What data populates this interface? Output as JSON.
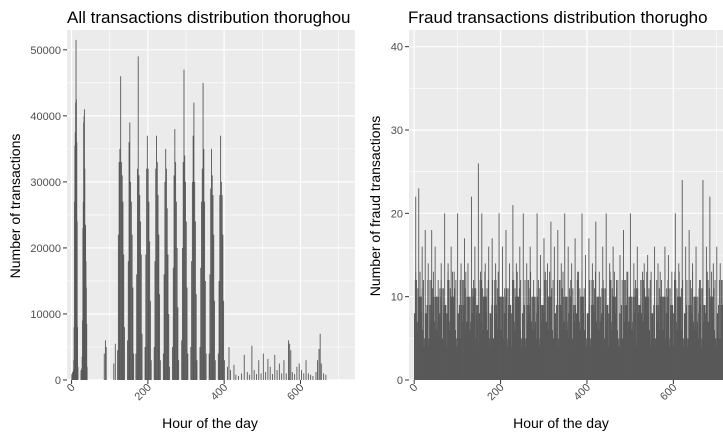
{
  "chart_data": [
    {
      "type": "bar",
      "title": "All transactions distribution thorughou",
      "xlabel": "Hour of the day",
      "ylabel": "Number of transactions",
      "xlim": [
        -12,
        743
      ],
      "ylim": [
        0,
        53000
      ],
      "xticks": [
        0,
        200,
        400,
        600
      ],
      "yticks": [
        0,
        10000,
        20000,
        30000,
        40000,
        50000
      ],
      "ytick_labels": [
        "0",
        "10000",
        "20000",
        "30000",
        "40000",
        "50000"
      ],
      "grid": true,
      "bar_color": "#595959",
      "bars": [
        {
          "x": 0,
          "y": 900
        },
        {
          "x": 1,
          "y": 700
        },
        {
          "x": 2,
          "y": 1200
        },
        {
          "x": 3,
          "y": 600
        },
        {
          "x": 4,
          "y": 1500
        },
        {
          "x": 5,
          "y": 3000
        },
        {
          "x": 6,
          "y": 8000
        },
        {
          "x": 7,
          "y": 27000
        },
        {
          "x": 8,
          "y": 35500
        },
        {
          "x": 9,
          "y": 37500
        },
        {
          "x": 10,
          "y": 42000
        },
        {
          "x": 11,
          "y": 51500
        },
        {
          "x": 12,
          "y": 42500
        },
        {
          "x": 13,
          "y": 36000
        },
        {
          "x": 14,
          "y": 24000
        },
        {
          "x": 15,
          "y": 8000
        },
        {
          "x": 16,
          "y": 2000
        },
        {
          "x": 24,
          "y": 1500
        },
        {
          "x": 25,
          "y": 1000
        },
        {
          "x": 26,
          "y": 1800
        },
        {
          "x": 27,
          "y": 3500
        },
        {
          "x": 28,
          "y": 9000
        },
        {
          "x": 29,
          "y": 23000
        },
        {
          "x": 30,
          "y": 27000
        },
        {
          "x": 31,
          "y": 39000
        },
        {
          "x": 32,
          "y": 40000
        },
        {
          "x": 33,
          "y": 41000
        },
        {
          "x": 34,
          "y": 32000
        },
        {
          "x": 35,
          "y": 23000
        },
        {
          "x": 36,
          "y": 23500
        },
        {
          "x": 37,
          "y": 18000
        },
        {
          "x": 38,
          "y": 14000
        },
        {
          "x": 39,
          "y": 8500
        },
        {
          "x": 40,
          "y": 2000
        },
        {
          "x": 85,
          "y": 4000
        },
        {
          "x": 88,
          "y": 6000
        },
        {
          "x": 90,
          "y": 5000
        },
        {
          "x": 110,
          "y": 2500
        },
        {
          "x": 114,
          "y": 5500
        },
        {
          "x": 120,
          "y": 4500
        },
        {
          "x": 122,
          "y": 22000
        },
        {
          "x": 124,
          "y": 33000
        },
        {
          "x": 126,
          "y": 35000
        },
        {
          "x": 128,
          "y": 46000
        },
        {
          "x": 130,
          "y": 33000
        },
        {
          "x": 132,
          "y": 31000
        },
        {
          "x": 134,
          "y": 27000
        },
        {
          "x": 136,
          "y": 19000
        },
        {
          "x": 138,
          "y": 8000
        },
        {
          "x": 146,
          "y": 6000
        },
        {
          "x": 148,
          "y": 18000
        },
        {
          "x": 150,
          "y": 36000
        },
        {
          "x": 152,
          "y": 39000
        },
        {
          "x": 154,
          "y": 30000
        },
        {
          "x": 156,
          "y": 27000
        },
        {
          "x": 158,
          "y": 22000
        },
        {
          "x": 160,
          "y": 14000
        },
        {
          "x": 162,
          "y": 4000
        },
        {
          "x": 168,
          "y": 4000
        },
        {
          "x": 170,
          "y": 16000
        },
        {
          "x": 172,
          "y": 32000
        },
        {
          "x": 174,
          "y": 49000
        },
        {
          "x": 176,
          "y": 31000
        },
        {
          "x": 178,
          "y": 28000
        },
        {
          "x": 180,
          "y": 24000
        },
        {
          "x": 182,
          "y": 19000
        },
        {
          "x": 184,
          "y": 7000
        },
        {
          "x": 192,
          "y": 5000
        },
        {
          "x": 194,
          "y": 19000
        },
        {
          "x": 196,
          "y": 32000
        },
        {
          "x": 198,
          "y": 37000
        },
        {
          "x": 200,
          "y": 32000
        },
        {
          "x": 202,
          "y": 27000
        },
        {
          "x": 204,
          "y": 21000
        },
        {
          "x": 206,
          "y": 12000
        },
        {
          "x": 208,
          "y": 3000
        },
        {
          "x": 216,
          "y": 5000
        },
        {
          "x": 218,
          "y": 18000
        },
        {
          "x": 220,
          "y": 32000
        },
        {
          "x": 222,
          "y": 37000
        },
        {
          "x": 224,
          "y": 33000
        },
        {
          "x": 226,
          "y": 28000
        },
        {
          "x": 228,
          "y": 22000
        },
        {
          "x": 230,
          "y": 13000
        },
        {
          "x": 232,
          "y": 3000
        },
        {
          "x": 240,
          "y": 4000
        },
        {
          "x": 242,
          "y": 16000
        },
        {
          "x": 244,
          "y": 30000
        },
        {
          "x": 246,
          "y": 35000
        },
        {
          "x": 248,
          "y": 32000
        },
        {
          "x": 250,
          "y": 26000
        },
        {
          "x": 252,
          "y": 19000
        },
        {
          "x": 254,
          "y": 10000
        },
        {
          "x": 256,
          "y": 2000
        },
        {
          "x": 264,
          "y": 5000
        },
        {
          "x": 266,
          "y": 17000
        },
        {
          "x": 268,
          "y": 31000
        },
        {
          "x": 270,
          "y": 38000
        },
        {
          "x": 272,
          "y": 33000
        },
        {
          "x": 274,
          "y": 27000
        },
        {
          "x": 276,
          "y": 20000
        },
        {
          "x": 278,
          "y": 11000
        },
        {
          "x": 280,
          "y": 3000
        },
        {
          "x": 288,
          "y": 6000
        },
        {
          "x": 290,
          "y": 20000
        },
        {
          "x": 292,
          "y": 33000
        },
        {
          "x": 294,
          "y": 47000
        },
        {
          "x": 296,
          "y": 34000
        },
        {
          "x": 298,
          "y": 30000
        },
        {
          "x": 300,
          "y": 24000
        },
        {
          "x": 302,
          "y": 14000
        },
        {
          "x": 304,
          "y": 4000
        },
        {
          "x": 312,
          "y": 5000
        },
        {
          "x": 314,
          "y": 18000
        },
        {
          "x": 316,
          "y": 30000
        },
        {
          "x": 318,
          "y": 37000
        },
        {
          "x": 320,
          "y": 42000
        },
        {
          "x": 322,
          "y": 30000
        },
        {
          "x": 324,
          "y": 24000
        },
        {
          "x": 326,
          "y": 13000
        },
        {
          "x": 328,
          "y": 3000
        },
        {
          "x": 336,
          "y": 5000
        },
        {
          "x": 338,
          "y": 17000
        },
        {
          "x": 340,
          "y": 27000
        },
        {
          "x": 342,
          "y": 32000
        },
        {
          "x": 344,
          "y": 45000
        },
        {
          "x": 346,
          "y": 35000
        },
        {
          "x": 348,
          "y": 27000
        },
        {
          "x": 350,
          "y": 15000
        },
        {
          "x": 352,
          "y": 4000
        },
        {
          "x": 360,
          "y": 4000
        },
        {
          "x": 362,
          "y": 16000
        },
        {
          "x": 364,
          "y": 29000
        },
        {
          "x": 366,
          "y": 35000
        },
        {
          "x": 368,
          "y": 31000
        },
        {
          "x": 370,
          "y": 28000
        },
        {
          "x": 372,
          "y": 22000
        },
        {
          "x": 374,
          "y": 12000
        },
        {
          "x": 376,
          "y": 3000
        },
        {
          "x": 384,
          "y": 4000
        },
        {
          "x": 386,
          "y": 15000
        },
        {
          "x": 388,
          "y": 28000
        },
        {
          "x": 390,
          "y": 37000
        },
        {
          "x": 392,
          "y": 30000
        },
        {
          "x": 394,
          "y": 28000
        },
        {
          "x": 396,
          "y": 22000
        },
        {
          "x": 398,
          "y": 12000
        },
        {
          "x": 400,
          "y": 3000
        },
        {
          "x": 408,
          "y": 2000
        },
        {
          "x": 412,
          "y": 5000
        },
        {
          "x": 416,
          "y": 1500
        },
        {
          "x": 425,
          "y": 2300
        },
        {
          "x": 430,
          "y": 800
        },
        {
          "x": 437,
          "y": 600
        },
        {
          "x": 445,
          "y": 1000
        },
        {
          "x": 452,
          "y": 3800
        },
        {
          "x": 460,
          "y": 1200
        },
        {
          "x": 466,
          "y": 800
        },
        {
          "x": 472,
          "y": 5200
        },
        {
          "x": 478,
          "y": 1500
        },
        {
          "x": 484,
          "y": 900
        },
        {
          "x": 490,
          "y": 3000
        },
        {
          "x": 496,
          "y": 1000
        },
        {
          "x": 502,
          "y": 4000
        },
        {
          "x": 508,
          "y": 1200
        },
        {
          "x": 514,
          "y": 3200
        },
        {
          "x": 520,
          "y": 2000
        },
        {
          "x": 526,
          "y": 900
        },
        {
          "x": 532,
          "y": 3800
        },
        {
          "x": 538,
          "y": 1500
        },
        {
          "x": 544,
          "y": 2500
        },
        {
          "x": 550,
          "y": 1000
        },
        {
          "x": 556,
          "y": 3000
        },
        {
          "x": 562,
          "y": 1000
        },
        {
          "x": 568,
          "y": 6000
        },
        {
          "x": 571,
          "y": 5500
        },
        {
          "x": 574,
          "y": 4500
        },
        {
          "x": 578,
          "y": 1200
        },
        {
          "x": 584,
          "y": 900
        },
        {
          "x": 590,
          "y": 2000
        },
        {
          "x": 596,
          "y": 2500
        },
        {
          "x": 602,
          "y": 1500
        },
        {
          "x": 608,
          "y": 1000
        },
        {
          "x": 614,
          "y": 3000
        },
        {
          "x": 620,
          "y": 1000
        },
        {
          "x": 626,
          "y": 800
        },
        {
          "x": 632,
          "y": 600
        },
        {
          "x": 640,
          "y": 1200
        },
        {
          "x": 644,
          "y": 3000
        },
        {
          "x": 648,
          "y": 4700
        },
        {
          "x": 651,
          "y": 7000
        },
        {
          "x": 654,
          "y": 2500
        },
        {
          "x": 660,
          "y": 1000
        },
        {
          "x": 666,
          "y": 800
        }
      ]
    },
    {
      "type": "bar",
      "title": "Fraud transactions distribution thorugho",
      "xlabel": "Hour of the day",
      "ylabel": "Number of fraud transactions",
      "xlim": [
        -12,
        752
      ],
      "ylim": [
        0,
        42
      ],
      "xticks": [
        0,
        200,
        400,
        600
      ],
      "yticks": [
        0,
        10,
        20,
        30,
        40
      ],
      "ytick_labels": [
        "0",
        "10",
        "20",
        "30",
        "40"
      ],
      "grid": true,
      "bar_color": "#595959",
      "base_levels": [
        8,
        6,
        10,
        7,
        12,
        5,
        9,
        8,
        11,
        6,
        10,
        4,
        9,
        7,
        12,
        6,
        10,
        8,
        5,
        11,
        9,
        7,
        13,
        6,
        10,
        8,
        4,
        12,
        9,
        7,
        10,
        6,
        11,
        8,
        5,
        9,
        12,
        7,
        10,
        6,
        8,
        11,
        4,
        9,
        7,
        13,
        6,
        10,
        8,
        5
      ],
      "spikes": [
        {
          "x": 3,
          "y": 22
        },
        {
          "x": 10,
          "y": 23
        },
        {
          "x": 18,
          "y": 16
        },
        {
          "x": 25,
          "y": 18
        },
        {
          "x": 32,
          "y": 14
        },
        {
          "x": 40,
          "y": 18
        },
        {
          "x": 48,
          "y": 16
        },
        {
          "x": 55,
          "y": 12
        },
        {
          "x": 62,
          "y": 14
        },
        {
          "x": 70,
          "y": 20
        },
        {
          "x": 78,
          "y": 14
        },
        {
          "x": 85,
          "y": 16
        },
        {
          "x": 92,
          "y": 13
        },
        {
          "x": 100,
          "y": 20
        },
        {
          "x": 108,
          "y": 14
        },
        {
          "x": 116,
          "y": 17
        },
        {
          "x": 124,
          "y": 14
        },
        {
          "x": 132,
          "y": 22
        },
        {
          "x": 140,
          "y": 16
        },
        {
          "x": 148,
          "y": 26
        },
        {
          "x": 156,
          "y": 20
        },
        {
          "x": 164,
          "y": 14
        },
        {
          "x": 172,
          "y": 16
        },
        {
          "x": 180,
          "y": 17
        },
        {
          "x": 188,
          "y": 14
        },
        {
          "x": 196,
          "y": 20
        },
        {
          "x": 204,
          "y": 16
        },
        {
          "x": 212,
          "y": 18
        },
        {
          "x": 220,
          "y": 14
        },
        {
          "x": 228,
          "y": 21
        },
        {
          "x": 236,
          "y": 14
        },
        {
          "x": 244,
          "y": 16
        },
        {
          "x": 252,
          "y": 20
        },
        {
          "x": 260,
          "y": 14
        },
        {
          "x": 268,
          "y": 16
        },
        {
          "x": 276,
          "y": 12
        },
        {
          "x": 284,
          "y": 20
        },
        {
          "x": 292,
          "y": 15
        },
        {
          "x": 300,
          "y": 17
        },
        {
          "x": 308,
          "y": 14
        },
        {
          "x": 316,
          "y": 19
        },
        {
          "x": 324,
          "y": 16
        },
        {
          "x": 332,
          "y": 18
        },
        {
          "x": 340,
          "y": 14
        },
        {
          "x": 348,
          "y": 20
        },
        {
          "x": 356,
          "y": 16
        },
        {
          "x": 364,
          "y": 14
        },
        {
          "x": 372,
          "y": 17
        },
        {
          "x": 380,
          "y": 13
        },
        {
          "x": 388,
          "y": 20
        },
        {
          "x": 396,
          "y": 15
        },
        {
          "x": 404,
          "y": 17
        },
        {
          "x": 412,
          "y": 14
        },
        {
          "x": 420,
          "y": 19
        },
        {
          "x": 428,
          "y": 13
        },
        {
          "x": 436,
          "y": 16
        },
        {
          "x": 444,
          "y": 20
        },
        {
          "x": 452,
          "y": 14
        },
        {
          "x": 460,
          "y": 16
        },
        {
          "x": 468,
          "y": 12
        },
        {
          "x": 476,
          "y": 15
        },
        {
          "x": 484,
          "y": 18
        },
        {
          "x": 492,
          "y": 13
        },
        {
          "x": 500,
          "y": 20
        },
        {
          "x": 508,
          "y": 14
        },
        {
          "x": 516,
          "y": 16
        },
        {
          "x": 524,
          "y": 12
        },
        {
          "x": 532,
          "y": 14
        },
        {
          "x": 540,
          "y": 15
        },
        {
          "x": 548,
          "y": 13
        },
        {
          "x": 556,
          "y": 16
        },
        {
          "x": 564,
          "y": 14
        },
        {
          "x": 572,
          "y": 12
        },
        {
          "x": 580,
          "y": 16
        },
        {
          "x": 588,
          "y": 15
        },
        {
          "x": 596,
          "y": 13
        },
        {
          "x": 604,
          "y": 20
        },
        {
          "x": 612,
          "y": 14
        },
        {
          "x": 620,
          "y": 24
        },
        {
          "x": 628,
          "y": 16
        },
        {
          "x": 636,
          "y": 18
        },
        {
          "x": 644,
          "y": 14
        },
        {
          "x": 652,
          "y": 16
        },
        {
          "x": 660,
          "y": 12
        },
        {
          "x": 668,
          "y": 24
        },
        {
          "x": 676,
          "y": 16
        },
        {
          "x": 684,
          "y": 22
        },
        {
          "x": 692,
          "y": 14
        },
        {
          "x": 700,
          "y": 16
        },
        {
          "x": 708,
          "y": 14
        },
        {
          "x": 716,
          "y": 16
        },
        {
          "x": 722,
          "y": 14
        },
        {
          "x": 728,
          "y": 13
        },
        {
          "x": 735,
          "y": 14
        },
        {
          "x": 741,
          "y": 10
        }
      ]
    }
  ]
}
